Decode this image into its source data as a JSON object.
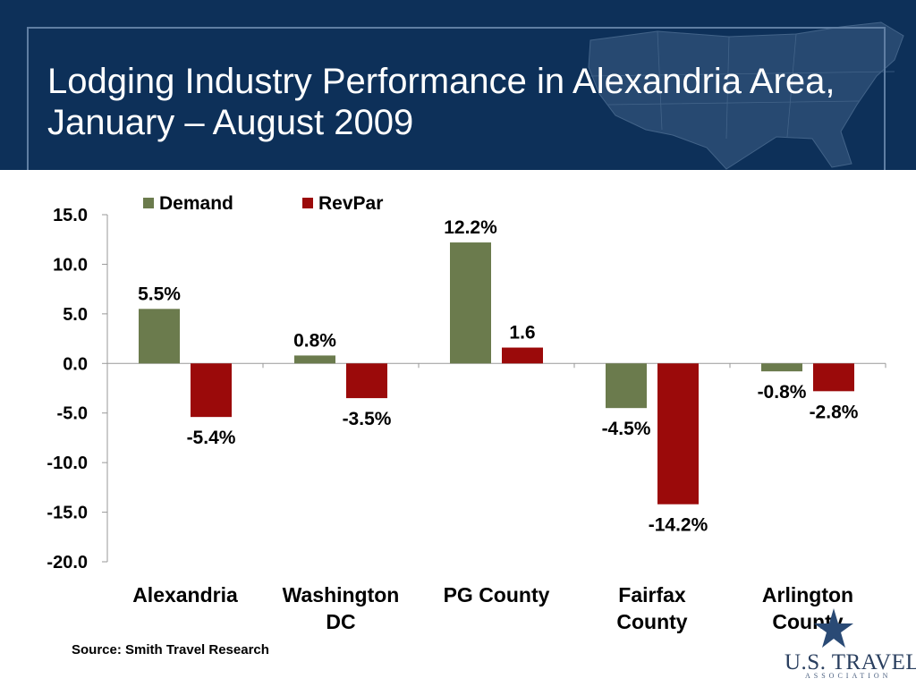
{
  "slide": {
    "title": "Lodging Industry Performance in Alexandria Area, January – August 2009",
    "source": "Source: Smith Travel Research",
    "logo_text": "U.S. TRAVEL",
    "logo_sub": "ASSOCIATION"
  },
  "colors": {
    "header_bg": "#0d3059",
    "demand": "#6b7b4d",
    "revpar": "#9b0a0a"
  },
  "chart_data": {
    "type": "bar",
    "categories": [
      "Alexandria",
      "Washington DC",
      "PG County",
      "Fairfax County",
      "Arlington County"
    ],
    "category_lines": [
      [
        "Alexandria"
      ],
      [
        "Washington",
        "DC"
      ],
      [
        "PG County"
      ],
      [
        "Fairfax",
        "County"
      ],
      [
        "Arlington",
        "County"
      ]
    ],
    "series": [
      {
        "name": "Demand",
        "values": [
          5.5,
          0.8,
          12.2,
          -4.5,
          -0.8
        ],
        "labels": [
          "5.5%",
          "0.8%",
          "12.2%",
          "-4.5%",
          "-0.8%"
        ]
      },
      {
        "name": "RevPar",
        "values": [
          -5.4,
          -3.5,
          1.6,
          -14.2,
          -2.8
        ],
        "labels": [
          "-5.4%",
          "-3.5%",
          "1.6",
          "-14.2%",
          "-2.8%"
        ]
      }
    ],
    "ylim": [
      -20,
      15
    ],
    "yticks": [
      "15.0",
      "10.0",
      "5.0",
      "0.0",
      "-5.0",
      "-10.0",
      "-15.0",
      "-20.0"
    ],
    "legend_position": "top",
    "grid": false
  }
}
